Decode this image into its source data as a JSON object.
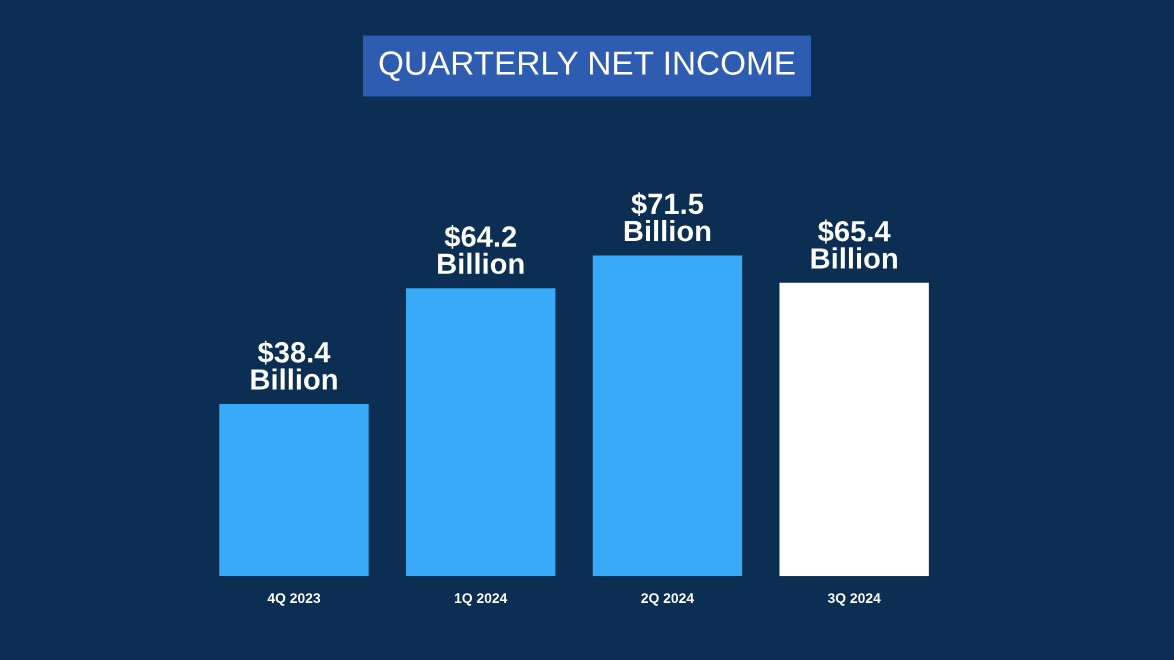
{
  "chart_data": {
    "type": "bar",
    "title": "QUARTERLY NET INCOME",
    "categories": [
      "4Q 2023",
      "1Q 2024",
      "2Q 2024",
      "3Q 2024"
    ],
    "values": [
      38.4,
      64.2,
      71.5,
      65.4
    ],
    "colors": [
      "#38aaf8",
      "#38aaf8",
      "#38aaf8",
      "#ffffff"
    ],
    "value_labels": [
      "$38.4\nBillion",
      "$64.2\nBillion",
      "$71.5\nBillion",
      "$65.4\nBillion"
    ],
    "grid": false,
    "legend": false
  }
}
